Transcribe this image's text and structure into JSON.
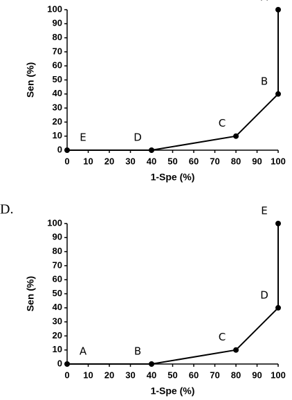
{
  "panel_label": "D.",
  "chart_data": [
    {
      "type": "line",
      "x": [
        0,
        40,
        80,
        100,
        100
      ],
      "values": [
        0,
        0,
        10,
        40,
        100
      ],
      "point_labels": [
        "E",
        "D",
        "C",
        "B",
        "A"
      ],
      "color": "#000000",
      "xlabel": "1-Spe (%)",
      "ylabel": "Sen (%)",
      "xlim": [
        0,
        100
      ],
      "ylim": [
        0,
        100
      ],
      "xticks": [
        0,
        10,
        20,
        30,
        40,
        50,
        60,
        70,
        80,
        90,
        100
      ],
      "yticks": [
        0,
        10,
        20,
        30,
        40,
        50,
        60,
        70,
        80,
        90,
        100
      ]
    },
    {
      "type": "line",
      "x": [
        0,
        40,
        80,
        100,
        100
      ],
      "values": [
        0,
        0,
        10,
        40,
        100
      ],
      "point_labels": [
        "A",
        "B",
        "C",
        "D",
        "E"
      ],
      "color": "#000000",
      "xlabel": "1-Spe (%)",
      "ylabel": "Sen (%)",
      "xlim": [
        0,
        100
      ],
      "ylim": [
        0,
        100
      ],
      "xticks": [
        0,
        10,
        20,
        30,
        40,
        50,
        60,
        70,
        80,
        90,
        100
      ],
      "yticks": [
        0,
        10,
        20,
        30,
        40,
        50,
        60,
        70,
        80,
        90,
        100
      ]
    }
  ]
}
